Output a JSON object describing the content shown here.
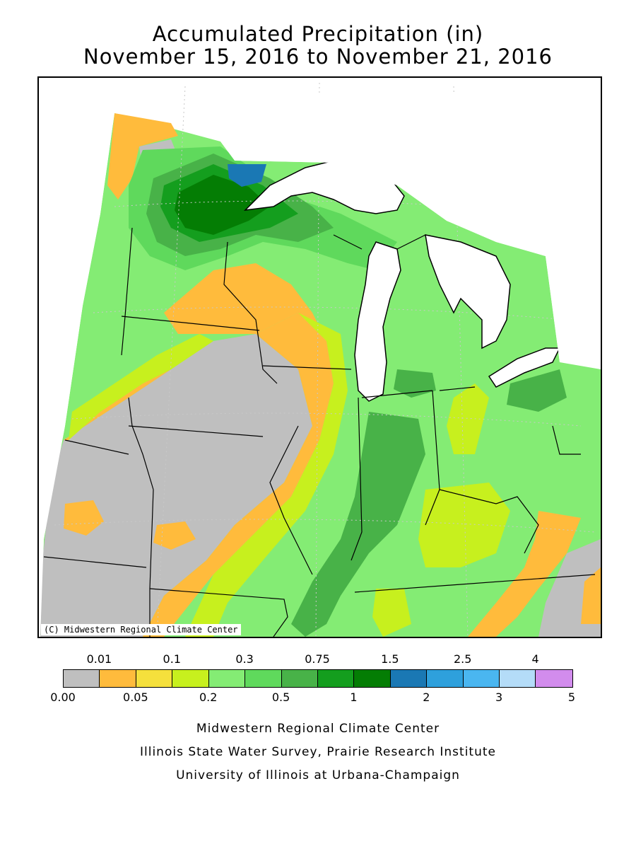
{
  "title": {
    "line1": "Accumulated Precipitation (in)",
    "line2": "November 15, 2016 to November 21, 2016"
  },
  "map": {
    "copyright": "(C) Midwestern Regional Climate Center",
    "colors": {
      "lake": "#ffffff",
      "state_line": "#000000",
      "grid_line": "#c8c8c8"
    }
  },
  "legend": {
    "top_labels": [
      "0.01",
      "0.1",
      "0.3",
      "0.75",
      "1.5",
      "2.5",
      "4"
    ],
    "bottom_labels": [
      "0.00",
      "0.05",
      "0.2",
      "0.5",
      "1",
      "2",
      "3",
      "5"
    ],
    "bins": [
      {
        "color": "#bfbfbf"
      },
      {
        "color": "#ffbb3c"
      },
      {
        "color": "#f5e03c"
      },
      {
        "color": "#c7f01e"
      },
      {
        "color": "#84ec74"
      },
      {
        "color": "#5fd95c"
      },
      {
        "color": "#48b248"
      },
      {
        "color": "#149e1e"
      },
      {
        "color": "#047d04"
      },
      {
        "color": "#1a78b4"
      },
      {
        "color": "#2ea0dc"
      },
      {
        "color": "#4ab6f0"
      },
      {
        "color": "#b4dcf8"
      },
      {
        "color": "#d28ced"
      }
    ]
  },
  "credits": {
    "line1": "Midwestern Regional Climate Center",
    "line2": "Illinois State Water Survey, Prairie Research Institute",
    "line3": "University of Illinois at Urbana-Champaign"
  }
}
